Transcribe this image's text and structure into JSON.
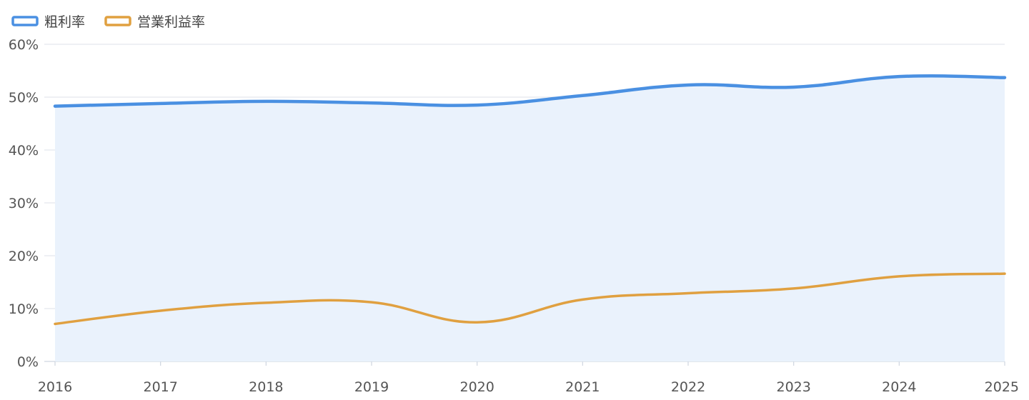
{
  "chart_data": {
    "type": "line",
    "title": "",
    "xlabel": "",
    "ylabel": "",
    "x": [
      "2016",
      "2017",
      "2018",
      "2019",
      "2020",
      "2021",
      "2022",
      "2023",
      "2024",
      "2025"
    ],
    "ylim": [
      0,
      60
    ],
    "yticks": [
      0,
      10,
      20,
      30,
      40,
      50,
      60
    ],
    "ytick_labels": [
      "0%",
      "10%",
      "20%",
      "30%",
      "40%",
      "50%",
      "60%"
    ],
    "grid": true,
    "legend_position": "top-left",
    "series": [
      {
        "name": "粗利率",
        "values": [
          48.3,
          48.8,
          49.2,
          48.9,
          48.5,
          50.3,
          52.3,
          51.9,
          53.9,
          53.7
        ],
        "color": "#4a90e2",
        "fill": true,
        "fill_color": "#eaf2fc"
      },
      {
        "name": "営業利益率",
        "values": [
          7.1,
          9.6,
          11.1,
          11.2,
          7.4,
          11.7,
          12.9,
          13.8,
          16.1,
          16.6
        ],
        "color": "#e0a040",
        "fill": false
      }
    ]
  }
}
